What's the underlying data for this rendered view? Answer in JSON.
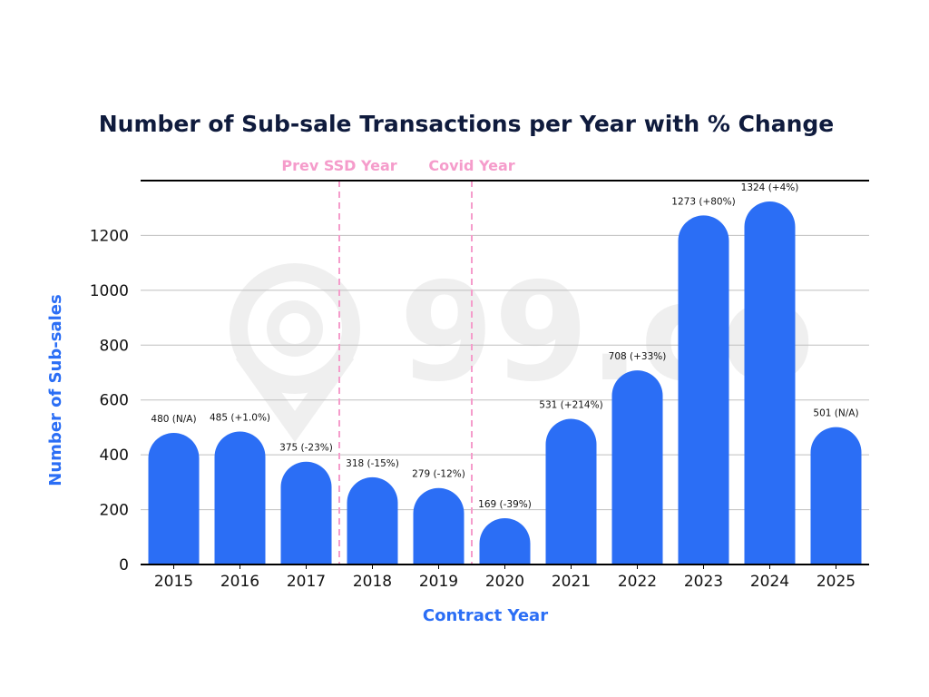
{
  "chart_data": {
    "type": "bar",
    "title": "Number of Sub-sale Transactions per Year with % Change",
    "xlabel": "Contract Year",
    "ylabel": "Number of Sub-sales",
    "categories": [
      "2015",
      "2016",
      "2017",
      "2018",
      "2019",
      "2020",
      "2021",
      "2022",
      "2023",
      "2024",
      "2025"
    ],
    "values": [
      480,
      485,
      375,
      318,
      279,
      169,
      531,
      708,
      1273,
      1324,
      501
    ],
    "data_labels": [
      "480 (N/A)",
      "485 (+1.0%)",
      "375 (-23%)",
      "318 (-15%)",
      "279 (-12%)",
      "169 (-39%)",
      "531 (+214%)",
      "708 (+33%)",
      "1273 (+80%)",
      "1324 (+4%)",
      "501 (N/A)"
    ],
    "ylim": [
      0,
      1400
    ],
    "yticks": [
      0,
      200,
      400,
      600,
      800,
      1000,
      1200
    ],
    "grid": "horizontal",
    "annotations": [
      {
        "label": "Prev SSD Year",
        "at_category": "2017"
      },
      {
        "label": "Covid Year",
        "at_category": "2019"
      }
    ],
    "watermark": "99.co",
    "colors": {
      "bar": "#2b6ef5",
      "title": "#0f1b3d",
      "axis_label": "#2b6ef5",
      "annotation": "#f59ccb",
      "grid": "#bfbfbf"
    }
  }
}
